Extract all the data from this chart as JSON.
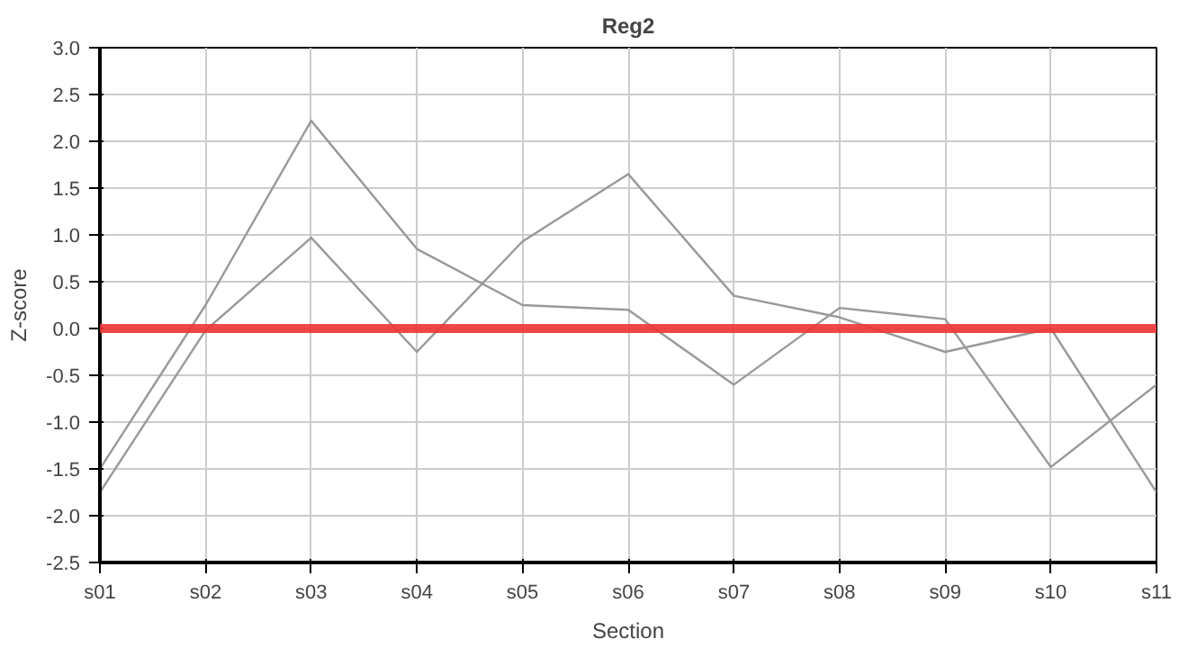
{
  "chart_data": {
    "type": "line",
    "title": "Reg2",
    "xlabel": "Section",
    "ylabel": "Z-score",
    "categories": [
      "s01",
      "s02",
      "s03",
      "s04",
      "s05",
      "s06",
      "s07",
      "s08",
      "s09",
      "s10",
      "s11"
    ],
    "series": [
      {
        "color": "#999999",
        "values": [
          -1.75,
          -0.02,
          0.97,
          -0.25,
          0.93,
          1.65,
          0.35,
          0.12,
          -0.25,
          0.0,
          -1.75
        ]
      },
      {
        "color": "#999999",
        "values": [
          -1.5,
          0.25,
          2.22,
          0.85,
          0.25,
          0.2,
          -0.6,
          0.22,
          0.1,
          -1.48,
          -0.6
        ]
      }
    ],
    "ylim": [
      -2.5,
      3.0
    ],
    "yticks": [
      {
        "value": -2.5,
        "label": "-2.5"
      },
      {
        "value": -2.0,
        "label": "-2.0"
      },
      {
        "value": -1.5,
        "label": "-1.5"
      },
      {
        "value": -1.0,
        "label": "-1.0"
      },
      {
        "value": -0.5,
        "label": "-0.5"
      },
      {
        "value": 0.0,
        "label": "0.0"
      },
      {
        "value": 0.5,
        "label": "0.5"
      },
      {
        "value": 1.0,
        "label": "1.0"
      },
      {
        "value": 1.5,
        "label": "1.5"
      },
      {
        "value": 2.0,
        "label": "2.0"
      },
      {
        "value": 2.5,
        "label": "2.5"
      },
      {
        "value": 3.0,
        "label": "3.0"
      }
    ],
    "ref_lines": [
      {
        "axis": "y",
        "value": 0.0,
        "color": "#ee3333"
      }
    ],
    "grid": true,
    "marker": "none",
    "line_style": "solid"
  }
}
